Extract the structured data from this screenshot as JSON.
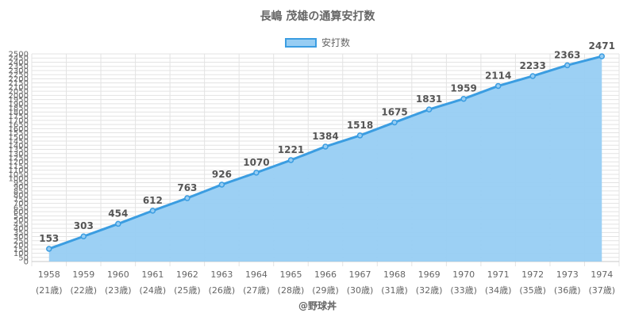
{
  "title": "長嶋 茂雄の通算安打数",
  "legend": {
    "label": "安打数"
  },
  "credit": "@野球丼",
  "colors": {
    "line": "#3b9de1",
    "fill": "#97cdf3",
    "grid": "#e3e3e3"
  },
  "chart_data": {
    "type": "area",
    "title": "長嶋 茂雄の通算安打数",
    "x": [
      "1958",
      "1959",
      "1960",
      "1961",
      "1962",
      "1963",
      "1964",
      "1965",
      "1966",
      "1967",
      "1968",
      "1969",
      "1970",
      "1971",
      "1972",
      "1973",
      "1974"
    ],
    "x_sublabels": [
      "(21歳)",
      "(22歳)",
      "(23歳)",
      "(24歳)",
      "(25歳)",
      "(26歳)",
      "(27歳)",
      "(28歳)",
      "(29歳)",
      "(30歳)",
      "(31歳)",
      "(32歳)",
      "(33歳)",
      "(34歳)",
      "(35歳)",
      "(36歳)",
      "(37歳)"
    ],
    "series": [
      {
        "name": "安打数",
        "values": [
          153,
          303,
          454,
          612,
          763,
          926,
          1070,
          1221,
          1384,
          1518,
          1675,
          1831,
          1959,
          2114,
          2233,
          2363,
          2471
        ]
      }
    ],
    "ylim": [
      0,
      2500
    ],
    "ytick_step": 50,
    "grid": true,
    "legend_position": "top-center",
    "data_labels": true
  }
}
